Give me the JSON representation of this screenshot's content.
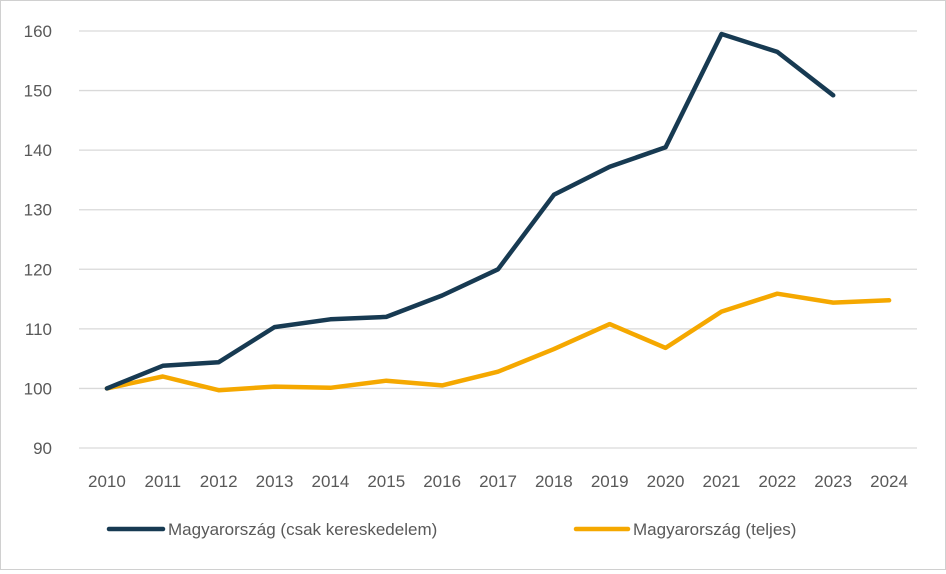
{
  "chart_data": {
    "type": "line",
    "title": "",
    "xlabel": "",
    "ylabel": "",
    "x": [
      "2010",
      "2011",
      "2012",
      "2013",
      "2014",
      "2015",
      "2016",
      "2017",
      "2018",
      "2019",
      "2020",
      "2021",
      "2022",
      "2023",
      "2024"
    ],
    "ylim": [
      90,
      160
    ],
    "yticks": [
      90,
      100,
      110,
      120,
      130,
      140,
      150,
      160
    ],
    "grid": true,
    "legend_position": "bottom",
    "series": [
      {
        "name": "Magyarország (csak kereskedelem)",
        "color": "#173a52",
        "values": [
          100,
          103.8,
          104.4,
          110.3,
          111.6,
          112.0,
          115.6,
          120.0,
          132.5,
          137.2,
          140.5,
          159.5,
          156.5,
          149.2,
          null
        ]
      },
      {
        "name": "Magyarország (teljes)",
        "color": "#f5a800",
        "values": [
          100,
          102.0,
          99.7,
          100.3,
          100.1,
          101.3,
          100.5,
          102.8,
          106.6,
          110.8,
          106.8,
          112.9,
          115.9,
          114.4,
          114.8
        ]
      }
    ]
  }
}
